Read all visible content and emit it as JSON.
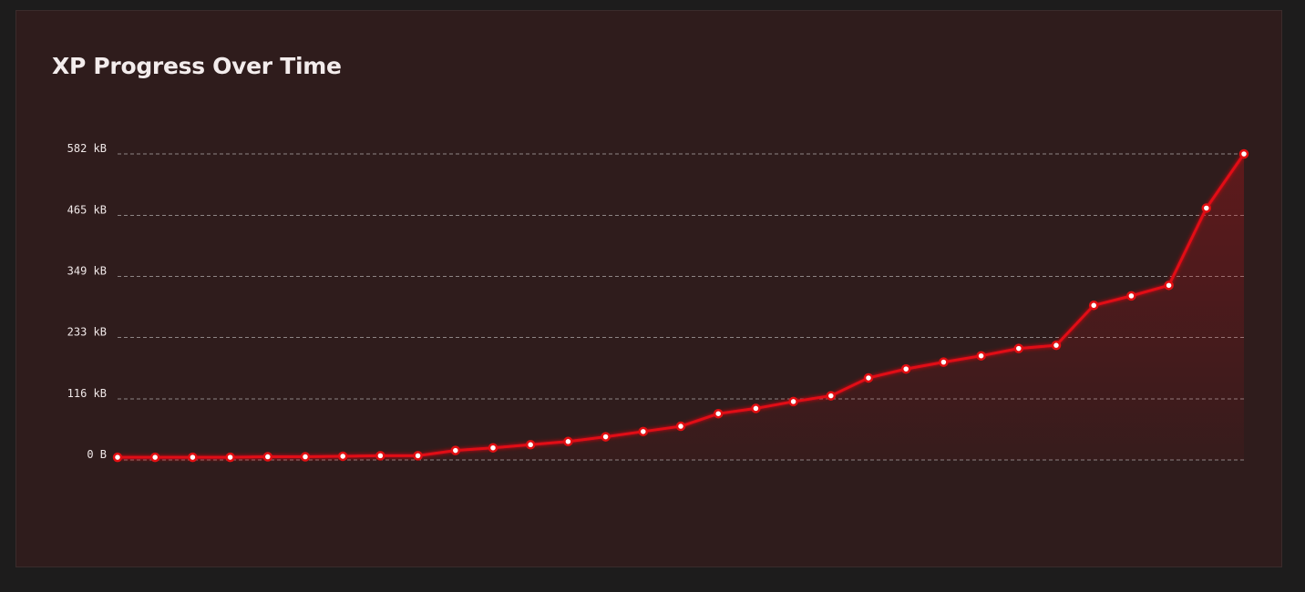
{
  "colors": {
    "background": "#1d1c1c",
    "card": "#2f1c1c",
    "line": "#e10f12",
    "point_fill": "#ffffff",
    "grid": "#8e8585",
    "text": "#f3ecec"
  },
  "chart_data": {
    "type": "area",
    "title": "XP Progress Over Time",
    "xlabel": "",
    "ylabel": "",
    "grid": true,
    "y_ticks": [
      0,
      116,
      233,
      349,
      465,
      582
    ],
    "y_tick_labels": [
      "0 B",
      "116 kB",
      "233 kB",
      "349 kB",
      "465 kB",
      "582 kB"
    ],
    "ylim": [
      0,
      582
    ],
    "y_unit": "kB",
    "series": [
      {
        "values": [
          5,
          5,
          5,
          5,
          6,
          6,
          7,
          8,
          8,
          18,
          23,
          29,
          35,
          44,
          54,
          64,
          88,
          98,
          111,
          122,
          156,
          173,
          186,
          198,
          212,
          218,
          294,
          312,
          332,
          479,
          582
        ]
      }
    ]
  }
}
